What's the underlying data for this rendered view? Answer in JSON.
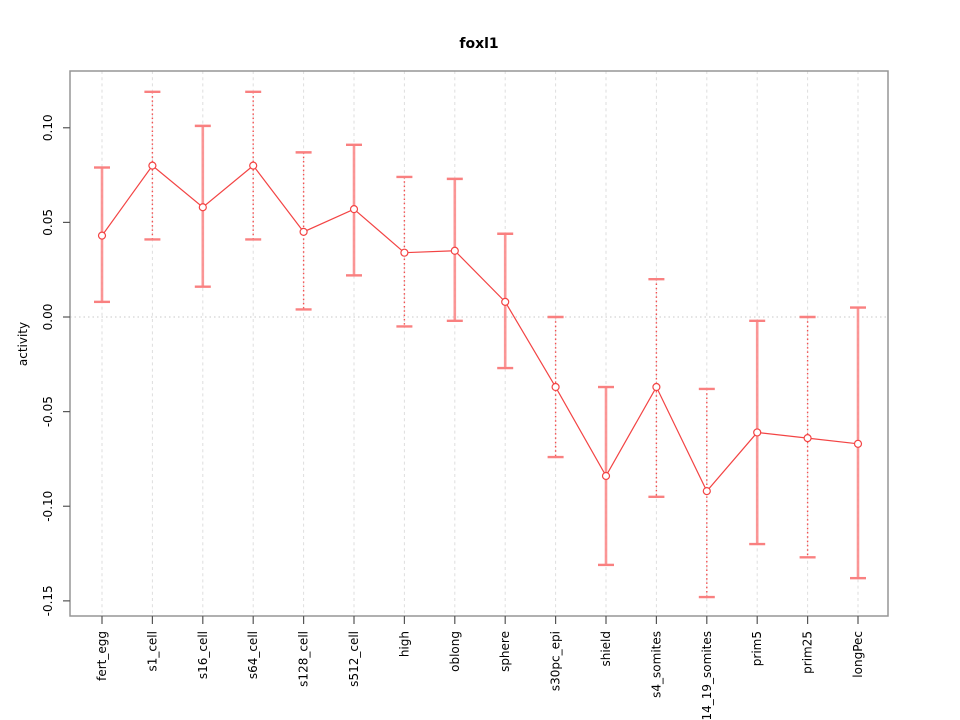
{
  "title": "foxl1",
  "colors": {
    "series_line": "#f34444",
    "marker_stroke": "#f34444",
    "marker_fill": "#ffffff",
    "errbar_dotted": "#f34f4f",
    "errbar_solid": "#fb8b8b",
    "errbar_cap": "#f98080",
    "grid_vertical": "#dedede",
    "zero_line": "#c8c8c8",
    "plot_border": "#969696",
    "tick": "#555555",
    "text": "#000000"
  },
  "chart_data": {
    "type": "line",
    "title": "foxl1",
    "xlabel": "",
    "ylabel": "activity",
    "legend": "none",
    "grid": "vertical dashed gridline at each category; horizontal dotted line at y=0",
    "categories": [
      "fert_egg",
      "s1_cell",
      "s16_cell",
      "s64_cell",
      "s128_cell",
      "s512_cell",
      "high",
      "oblong",
      "sphere",
      "s30pc_epi",
      "shield",
      "s4_somites",
      "s14_19_somites",
      "prim5",
      "prim25",
      "longPec"
    ],
    "series": [
      {
        "name": "activity",
        "values": [
          0.043,
          0.08,
          0.058,
          0.08,
          0.045,
          0.057,
          0.034,
          0.035,
          0.008,
          -0.037,
          -0.084,
          -0.037,
          -0.092,
          -0.061,
          -0.064,
          -0.067
        ],
        "err_lo": [
          0.008,
          0.041,
          0.016,
          0.041,
          0.004,
          0.022,
          -0.005,
          -0.002,
          -0.027,
          -0.074,
          -0.131,
          -0.095,
          -0.148,
          -0.12,
          -0.127,
          -0.138
        ],
        "err_hi": [
          0.079,
          0.119,
          0.101,
          0.119,
          0.087,
          0.091,
          0.074,
          0.073,
          0.044,
          0.0,
          -0.037,
          0.02,
          -0.038,
          -0.002,
          0.0,
          0.005
        ],
        "errbar_styles": [
          "solid",
          "dotted",
          "solid",
          "dotted",
          "dotted",
          "solid",
          "dotted",
          "solid",
          "solid",
          "dotted",
          "solid",
          "dotted",
          "dotted",
          "solid",
          "dotted",
          "solid"
        ]
      }
    ],
    "ylim": [
      -0.158,
      0.13
    ],
    "yticks": [
      0.1,
      0.05,
      0.0,
      -0.05,
      -0.1,
      -0.15
    ],
    "ytick_labels": [
      "0.10",
      "0.05",
      "0.00",
      "-0.05",
      "-0.10",
      "-0.15"
    ]
  }
}
